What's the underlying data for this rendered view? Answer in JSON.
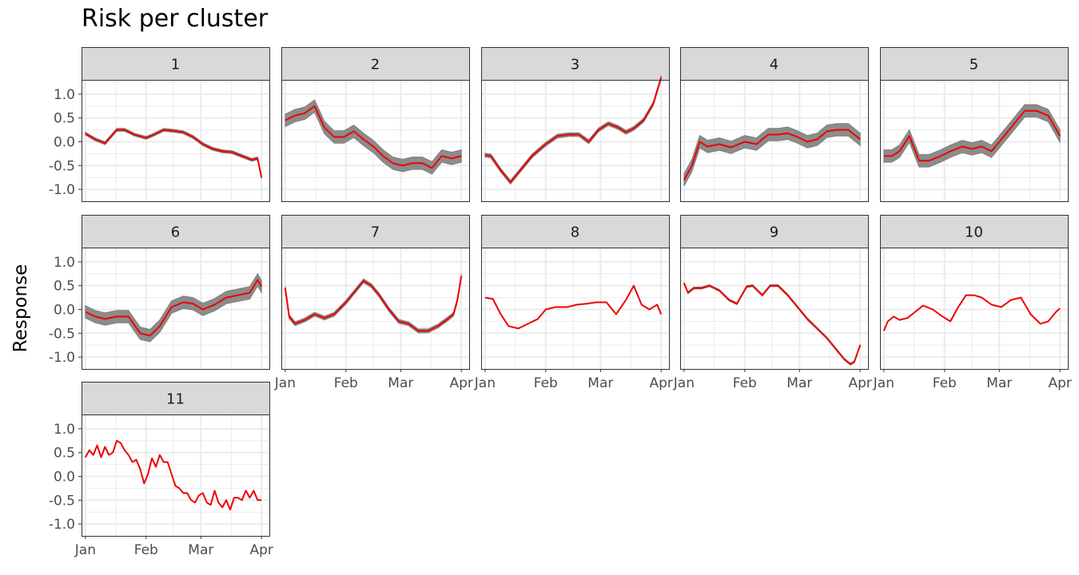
{
  "chart_data": {
    "type": "line",
    "title": "Risk per cluster",
    "ylabel": "Response",
    "xlabel": "",
    "ylim": [
      -1.25,
      1.3
    ],
    "yticks": [
      1.0,
      0.5,
      0.0,
      -0.5,
      -1.0
    ],
    "ytick_labels": [
      "1.0",
      "0.5",
      "0.0",
      "-0.5",
      "-1.0"
    ],
    "xlim": [
      -2,
      94
    ],
    "xticks": [
      0,
      31,
      59,
      90
    ],
    "xtick_labels": [
      "Jan",
      "Feb",
      "Mar",
      "Apr"
    ],
    "grid": true,
    "colors": {
      "mean": "#ee0000",
      "band": "#7f7f7f",
      "strip": "#d9d9d9",
      "grid": "#ebebeb"
    },
    "panels": [
      {
        "label": "1",
        "band_width": 0.03,
        "x": [
          0,
          5,
          10,
          16,
          20,
          25,
          31,
          35,
          40,
          45,
          50,
          55,
          60,
          65,
          70,
          75,
          80,
          85,
          88,
          90
        ],
        "y": [
          0.17,
          0.05,
          -0.03,
          0.25,
          0.25,
          0.15,
          0.08,
          0.15,
          0.25,
          0.23,
          0.2,
          0.1,
          -0.05,
          -0.15,
          -0.2,
          -0.22,
          -0.3,
          -0.38,
          -0.35,
          -0.75
        ]
      },
      {
        "label": "2",
        "band_width": 0.13,
        "x": [
          0,
          5,
          10,
          15,
          20,
          25,
          30,
          35,
          40,
          45,
          50,
          55,
          60,
          65,
          70,
          75,
          80,
          85,
          90
        ],
        "y": [
          0.45,
          0.55,
          0.6,
          0.75,
          0.3,
          0.1,
          0.1,
          0.22,
          0.05,
          -0.1,
          -0.3,
          -0.45,
          -0.5,
          -0.45,
          -0.45,
          -0.55,
          -0.3,
          -0.35,
          -0.3
        ]
      },
      {
        "label": "3",
        "band_width": 0.04,
        "x": [
          0,
          3,
          8,
          13,
          18,
          24,
          31,
          37,
          43,
          48,
          53,
          58,
          63,
          68,
          72,
          76,
          81,
          86,
          90
        ],
        "y": [
          -0.28,
          -0.3,
          -0.6,
          -0.85,
          -0.6,
          -0.3,
          -0.05,
          0.12,
          0.15,
          0.15,
          0.0,
          0.25,
          0.38,
          0.3,
          0.2,
          0.28,
          0.45,
          0.8,
          1.35
        ]
      },
      {
        "label": "4",
        "band_width": 0.13,
        "x": [
          0,
          4,
          8,
          12,
          18,
          24,
          31,
          37,
          43,
          48,
          53,
          58,
          63,
          68,
          73,
          78,
          84,
          90
        ],
        "y": [
          -0.8,
          -0.5,
          0.0,
          -0.1,
          -0.05,
          -0.12,
          0.0,
          -0.05,
          0.15,
          0.15,
          0.18,
          0.1,
          0.0,
          0.05,
          0.22,
          0.25,
          0.25,
          0.05
        ]
      },
      {
        "label": "5",
        "band_width": 0.13,
        "x": [
          0,
          4,
          8,
          13,
          18,
          23,
          29,
          34,
          40,
          45,
          50,
          55,
          60,
          66,
          72,
          78,
          84,
          90
        ],
        "y": [
          -0.3,
          -0.3,
          -0.2,
          0.12,
          -0.4,
          -0.4,
          -0.3,
          -0.2,
          -0.1,
          -0.15,
          -0.1,
          -0.2,
          0.05,
          0.35,
          0.65,
          0.65,
          0.55,
          0.12
        ]
      },
      {
        "label": "6",
        "band_width": 0.13,
        "x": [
          0,
          5,
          10,
          16,
          22,
          28,
          33,
          38,
          44,
          50,
          55,
          60,
          66,
          72,
          78,
          84,
          88,
          90
        ],
        "y": [
          -0.05,
          -0.15,
          -0.2,
          -0.15,
          -0.15,
          -0.5,
          -0.55,
          -0.35,
          0.05,
          0.15,
          0.12,
          0.0,
          0.1,
          0.25,
          0.3,
          0.35,
          0.62,
          0.48
        ]
      },
      {
        "label": "7",
        "band_width": 0.04,
        "x": [
          0,
          2,
          5,
          10,
          15,
          20,
          25,
          31,
          36,
          40,
          44,
          48,
          53,
          58,
          63,
          68,
          73,
          78,
          83,
          86,
          88,
          90
        ],
        "y": [
          0.45,
          -0.15,
          -0.3,
          -0.22,
          -0.1,
          -0.18,
          -0.1,
          0.15,
          0.4,
          0.6,
          0.5,
          0.3,
          0.0,
          -0.25,
          -0.3,
          -0.45,
          -0.45,
          -0.35,
          -0.2,
          -0.1,
          0.2,
          0.7
        ]
      },
      {
        "label": "8",
        "band_width": 0.0,
        "x": [
          0,
          4,
          8,
          12,
          17,
          22,
          27,
          31,
          36,
          42,
          47,
          52,
          57,
          62,
          67,
          72,
          76,
          80,
          84,
          88,
          90
        ],
        "y": [
          0.25,
          0.22,
          -0.1,
          -0.35,
          -0.4,
          -0.3,
          -0.2,
          0.0,
          0.05,
          0.05,
          0.1,
          0.12,
          0.15,
          0.15,
          -0.1,
          0.2,
          0.5,
          0.1,
          0.0,
          0.1,
          -0.1
        ]
      },
      {
        "label": "9",
        "band_width": 0.02,
        "x": [
          0,
          2,
          5,
          9,
          13,
          18,
          23,
          27,
          32,
          35,
          40,
          44,
          48,
          53,
          58,
          63,
          68,
          73,
          78,
          82,
          85,
          87,
          90
        ],
        "y": [
          0.55,
          0.35,
          0.45,
          0.45,
          0.5,
          0.4,
          0.2,
          0.12,
          0.48,
          0.5,
          0.3,
          0.5,
          0.5,
          0.3,
          0.05,
          -0.2,
          -0.4,
          -0.6,
          -0.85,
          -1.05,
          -1.15,
          -1.1,
          -0.75
        ]
      },
      {
        "label": "10",
        "band_width": 0.0,
        "x": [
          0,
          2,
          5,
          8,
          12,
          16,
          20,
          25,
          30,
          34,
          38,
          42,
          46,
          50,
          55,
          60,
          65,
          70,
          75,
          80,
          84,
          88,
          90
        ],
        "y": [
          -0.45,
          -0.25,
          -0.15,
          -0.22,
          -0.18,
          -0.05,
          0.08,
          0.0,
          -0.15,
          -0.25,
          0.05,
          0.3,
          0.3,
          0.25,
          0.1,
          0.05,
          0.2,
          0.25,
          -0.1,
          -0.3,
          -0.25,
          -0.05,
          0.02
        ]
      },
      {
        "label": "11",
        "band_width": 0.0,
        "x": [
          0,
          2,
          4,
          6,
          8,
          10,
          12,
          14,
          16,
          18,
          20,
          22,
          24,
          26,
          28,
          30,
          32,
          34,
          36,
          38,
          40,
          42,
          44,
          46,
          48,
          50,
          52,
          54,
          56,
          58,
          60,
          62,
          64,
          66,
          68,
          70,
          72,
          74,
          76,
          78,
          80,
          82,
          84,
          86,
          88,
          90
        ],
        "y": [
          0.4,
          0.55,
          0.45,
          0.65,
          0.4,
          0.62,
          0.45,
          0.5,
          0.75,
          0.7,
          0.55,
          0.45,
          0.3,
          0.35,
          0.15,
          -0.15,
          0.05,
          0.38,
          0.2,
          0.45,
          0.3,
          0.3,
          0.05,
          -0.2,
          -0.25,
          -0.35,
          -0.35,
          -0.5,
          -0.55,
          -0.4,
          -0.35,
          -0.55,
          -0.6,
          -0.3,
          -0.55,
          -0.65,
          -0.5,
          -0.7,
          -0.45,
          -0.45,
          -0.5,
          -0.3,
          -0.45,
          -0.3,
          -0.5,
          -0.5
        ]
      }
    ]
  }
}
